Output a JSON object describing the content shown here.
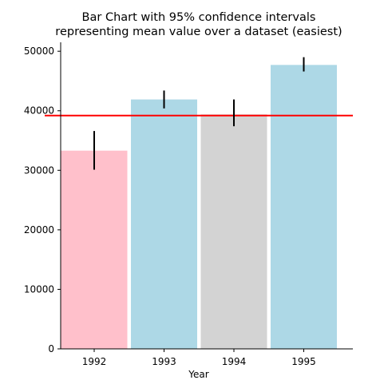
{
  "chart_data": {
    "type": "bar",
    "title": "Bar Chart with 95% confidence intervals representing mean value over a dataset (easiest)",
    "title_lines": [
      "Bar Chart with 95% confidence intervals",
      "representing mean value over a dataset (easiest)"
    ],
    "xlabel": "Year",
    "ylabel": "",
    "categories": [
      "1992",
      "1993",
      "1994",
      "1995"
    ],
    "values": [
      33300,
      41900,
      39400,
      47700
    ],
    "ci_low": [
      30100,
      40400,
      37400,
      46600
    ],
    "ci_high": [
      36600,
      43400,
      41900,
      49000
    ],
    "bar_colors": [
      "#ffc0cb",
      "#add8e6",
      "#d3d3d3",
      "#add8e6"
    ],
    "reference_line": {
      "value": 39200,
      "color": "#ff0000"
    },
    "ylim": [
      0,
      51500
    ],
    "yticks": [
      0,
      10000,
      20000,
      30000,
      40000,
      50000
    ],
    "ytick_labels": [
      "0",
      "10000",
      "20000",
      "30000",
      "40000",
      "50000"
    ],
    "grid": false,
    "legend": "none"
  }
}
